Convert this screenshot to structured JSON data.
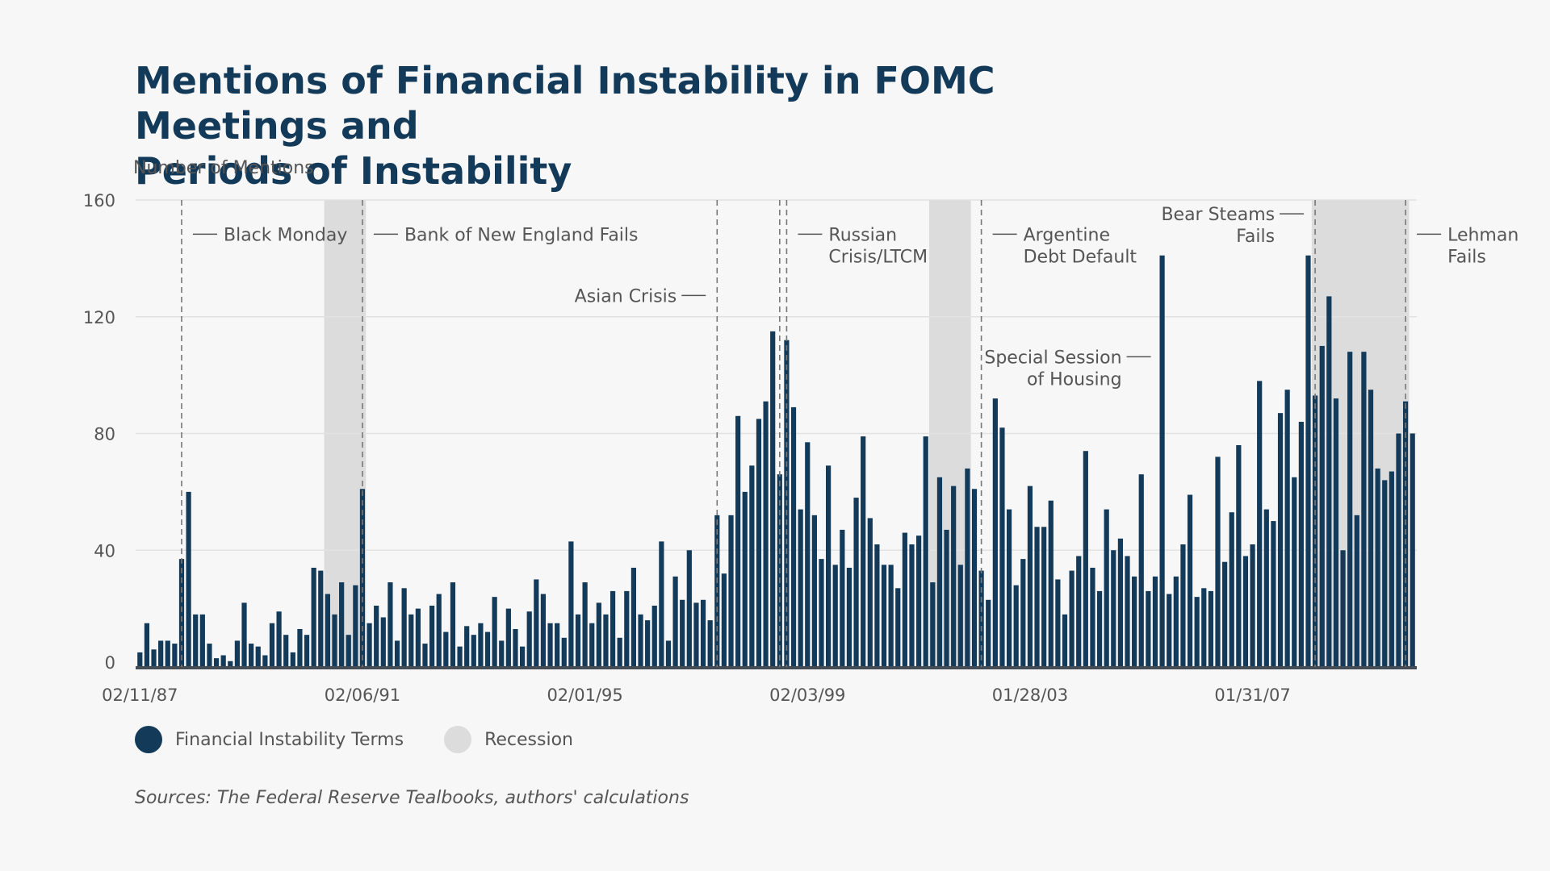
{
  "title_lines": [
    "Mentions of Financial Instability in FOMC Meetings and",
    "Periods of Instability"
  ],
  "colors": {
    "bar": "#143a5a",
    "recession": "#dcdcdc",
    "grid": "#e2e2e2",
    "text": "#555555",
    "title": "#143a5a",
    "background": "#f7f7f7"
  },
  "legend": [
    {
      "label": "Financial Instability Terms",
      "color": "#143a5a"
    },
    {
      "label": "Recession",
      "color": "#dcdcdc"
    }
  ],
  "source": "Sources: The Federal Reserve Tealbooks, authors' calculations",
  "chart_data": {
    "type": "bar",
    "ylabel": "Number of Mentions",
    "xlabel": "",
    "ylim": [
      0,
      160
    ],
    "yticks": [
      0,
      40,
      80,
      120,
      160
    ],
    "grid": true,
    "x_tick_labels": [
      "02/11/87",
      "02/06/91",
      "02/01/95",
      "02/03/99",
      "01/28/03",
      "01/31/07"
    ],
    "x_tick_indices": [
      0,
      32,
      64,
      96,
      128,
      160
    ],
    "legend_position": "bottom",
    "series": [
      {
        "name": "Financial Instability Terms",
        "values": [
          5,
          15,
          6,
          9,
          9,
          8,
          37,
          60,
          18,
          18,
          8,
          3,
          4,
          2,
          9,
          22,
          8,
          7,
          4,
          15,
          19,
          11,
          5,
          13,
          11,
          34,
          33,
          25,
          18,
          29,
          11,
          28,
          61,
          15,
          21,
          17,
          29,
          9,
          27,
          18,
          20,
          8,
          21,
          25,
          12,
          29,
          7,
          14,
          11,
          15,
          12,
          24,
          9,
          20,
          13,
          7,
          19,
          30,
          25,
          15,
          15,
          10,
          43,
          18,
          29,
          15,
          22,
          18,
          26,
          10,
          26,
          34,
          18,
          16,
          21,
          43,
          9,
          31,
          23,
          40,
          22,
          23,
          16,
          52,
          32,
          52,
          86,
          60,
          69,
          85,
          91,
          115,
          66,
          112,
          89,
          54,
          77,
          52,
          37,
          69,
          35,
          47,
          34,
          58,
          79,
          51,
          42,
          35,
          35,
          27,
          46,
          42,
          45,
          79,
          29,
          65,
          47,
          62,
          35,
          68,
          61,
          33,
          23,
          92,
          82,
          54,
          28,
          37,
          62,
          48,
          48,
          57,
          30,
          18,
          33,
          38,
          74,
          34,
          26,
          54,
          40,
          44,
          38,
          31,
          66,
          26,
          31,
          141,
          25,
          31,
          42,
          59,
          24,
          27,
          26,
          72,
          36,
          53,
          76,
          38,
          42,
          98,
          54,
          50,
          87,
          95,
          65,
          84,
          141,
          93,
          110,
          127,
          92,
          40,
          108,
          52,
          108,
          95,
          68,
          64,
          67,
          80,
          91,
          80
        ]
      }
    ],
    "recession_bands": [
      {
        "from_index": 26.5,
        "to_index": 32.5
      },
      {
        "from_index": 113.5,
        "to_index": 119.5
      },
      {
        "from_index": 168.5,
        "to_index": 182.5
      }
    ],
    "event_lines": [
      {
        "index": 6,
        "label": [
          "Black Monday"
        ],
        "side": "right",
        "label_y": 148
      },
      {
        "index": 32,
        "label": [
          "Bank of New England Fails"
        ],
        "side": "right",
        "label_y": 148
      },
      {
        "index": 83,
        "label": [
          "Asian Crisis"
        ],
        "side": "left",
        "label_y": 127
      },
      {
        "index": 92,
        "label": [],
        "side": "right",
        "label_y": 148
      },
      {
        "index": 93,
        "label": [
          "Russian",
          "Crisis/LTCM"
        ],
        "side": "right",
        "label_y": 148
      },
      {
        "index": 121,
        "label": [
          "Argentine",
          "Debt Default"
        ],
        "side": "right",
        "label_y": 148
      },
      {
        "index": 169,
        "label": [
          "Bear Steams",
          "Fails"
        ],
        "side": "left",
        "label_y": 155
      },
      {
        "index": 182,
        "label": [
          "Lehman",
          "Fails"
        ],
        "side": "right",
        "label_y": 148
      }
    ],
    "annotations": [
      {
        "index": 147,
        "label": [
          "Special Session",
          "of Housing"
        ],
        "side": "left",
        "label_y": 106
      }
    ]
  }
}
